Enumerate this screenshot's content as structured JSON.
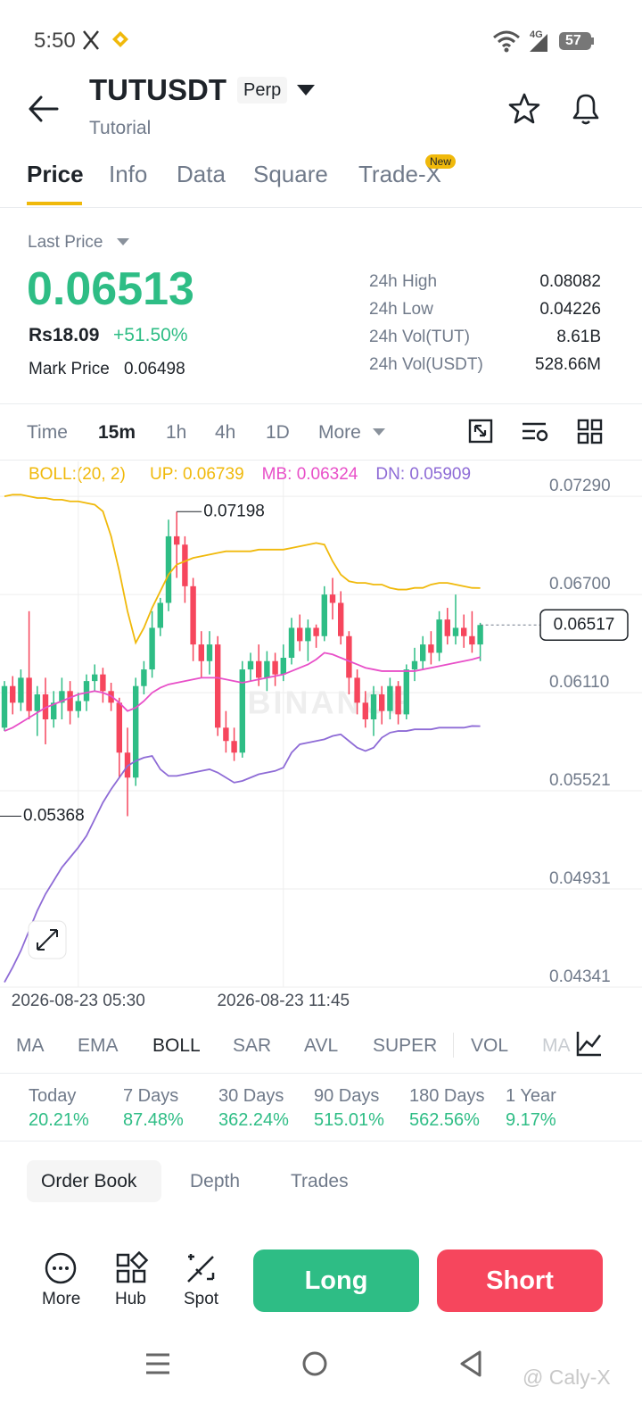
{
  "status_bar": {
    "time": "5:50",
    "battery": "57",
    "network": "4G"
  },
  "header": {
    "symbol": "TUTUSDT",
    "badge": "Perp",
    "subtitle": "Tutorial"
  },
  "tabs": [
    "Price",
    "Info",
    "Data",
    "Square",
    "Trade-X"
  ],
  "new_badge": "New",
  "ticker": {
    "last_price_label": "Last Price",
    "last_price": "0.06513",
    "local_price": "Rs18.09",
    "change": "+51.50%",
    "mark_price_label": "Mark Price",
    "mark_price": "0.06498",
    "stats": [
      {
        "label": "24h High",
        "value": "0.08082"
      },
      {
        "label": "24h Low",
        "value": "0.04226"
      },
      {
        "label": "24h Vol(TUT)",
        "value": "8.61B"
      },
      {
        "label": "24h Vol(USDT)",
        "value": "528.66M"
      }
    ]
  },
  "intervals": [
    "Time",
    "15m",
    "1h",
    "4h",
    "1D",
    "More"
  ],
  "chart_data": {
    "type": "candlestick",
    "indicator": "BOLL:(20, 2)",
    "watermark": "BINANCE",
    "categories": [
      null,
      null,
      null,
      null,
      null,
      null,
      null,
      null,
      null,
      "2026-08-23 05:30",
      null,
      null,
      null,
      null,
      null,
      null,
      null,
      null,
      null,
      null,
      null,
      null,
      null,
      null,
      null,
      null,
      null,
      null,
      null,
      null,
      null,
      null,
      null,
      null,
      "2026-08-23 11:45",
      null,
      null,
      null,
      null,
      null,
      null,
      null,
      null,
      null,
      null,
      null,
      null,
      null,
      null,
      null,
      null,
      null,
      null,
      null,
      null,
      null,
      null,
      null,
      null
    ],
    "open": [
      0.059,
      0.0615,
      0.0605,
      0.062,
      0.06,
      0.061,
      0.0595,
      0.0605,
      0.0612,
      0.06,
      0.0606,
      0.0618,
      0.0622,
      0.0612,
      0.0605,
      0.0575,
      0.056,
      0.0615,
      0.0625,
      0.065,
      0.0665,
      0.0705,
      0.07,
      0.0675,
      0.064,
      0.063,
      0.064,
      0.059,
      0.0582,
      0.0575,
      0.0625,
      0.063,
      0.062,
      0.063,
      0.0622,
      0.0632,
      0.065,
      0.0642,
      0.065,
      0.0645,
      0.067,
      0.0665,
      0.0645,
      0.062,
      0.0605,
      0.0595,
      0.061,
      0.06,
      0.0615,
      0.0598,
      0.0625,
      0.063,
      0.064,
      0.0635,
      0.0655,
      0.0645,
      0.065,
      0.0645,
      0.064
    ],
    "high": [
      0.0618,
      0.0621,
      0.0625,
      0.066,
      0.0615,
      0.062,
      0.0612,
      0.062,
      0.0618,
      0.0611,
      0.0622,
      0.0628,
      0.0626,
      0.0617,
      0.0608,
      0.059,
      0.062,
      0.063,
      0.066,
      0.0668,
      0.0715,
      0.07198,
      0.0705,
      0.068,
      0.0648,
      0.0648,
      0.0645,
      0.06,
      0.059,
      0.063,
      0.0635,
      0.064,
      0.0636,
      0.0635,
      0.064,
      0.0656,
      0.0658,
      0.0655,
      0.0652,
      0.0675,
      0.068,
      0.0672,
      0.0648,
      0.0625,
      0.0612,
      0.0615,
      0.0615,
      0.062,
      0.0618,
      0.0628,
      0.0638,
      0.0645,
      0.0648,
      0.066,
      0.0662,
      0.067,
      0.0658,
      0.066,
      0.0653
    ],
    "low": [
      0.0588,
      0.0598,
      0.06,
      0.0595,
      0.0585,
      0.058,
      0.059,
      0.0595,
      0.0592,
      0.0596,
      0.06,
      0.0612,
      0.0605,
      0.06,
      0.056,
      0.05368,
      0.0555,
      0.061,
      0.062,
      0.0645,
      0.066,
      0.068,
      0.0665,
      0.063,
      0.062,
      0.0622,
      0.0585,
      0.0575,
      0.057,
      0.0572,
      0.0618,
      0.0615,
      0.0612,
      0.0615,
      0.0618,
      0.0628,
      0.0636,
      0.063,
      0.0638,
      0.0642,
      0.0655,
      0.064,
      0.061,
      0.0598,
      0.059,
      0.0585,
      0.0592,
      0.0595,
      0.0592,
      0.0595,
      0.0618,
      0.0625,
      0.0628,
      0.063,
      0.064,
      0.064,
      0.0638,
      0.0635,
      0.063
    ],
    "close": [
      0.0615,
      0.0605,
      0.062,
      0.06,
      0.061,
      0.0595,
      0.0605,
      0.0612,
      0.06,
      0.0606,
      0.0618,
      0.0622,
      0.0612,
      0.0605,
      0.0575,
      0.056,
      0.0615,
      0.0625,
      0.065,
      0.0665,
      0.0705,
      0.07,
      0.0675,
      0.064,
      0.063,
      0.064,
      0.059,
      0.0582,
      0.0575,
      0.0625,
      0.063,
      0.062,
      0.063,
      0.0622,
      0.0632,
      0.065,
      0.0642,
      0.065,
      0.0645,
      0.067,
      0.0665,
      0.0645,
      0.062,
      0.0605,
      0.0595,
      0.061,
      0.06,
      0.0615,
      0.0598,
      0.0625,
      0.063,
      0.064,
      0.0635,
      0.0655,
      0.0645,
      0.065,
      0.0645,
      0.064,
      0.06517
    ],
    "up_color": "#2ebd85",
    "down_color": "#f6465d",
    "series": [
      {
        "name": "UP: 0.06739",
        "color": "#f0b90b",
        "values": [
          0.0729,
          0.073,
          0.073,
          0.0729,
          0.0728,
          0.0728,
          0.0727,
          0.0727,
          0.0726,
          0.0726,
          0.0725,
          0.0724,
          0.072,
          0.0705,
          0.0684,
          0.066,
          0.0641,
          0.065,
          0.0662,
          0.0672,
          0.0682,
          0.0688,
          0.069,
          0.0692,
          0.0693,
          0.0694,
          0.0695,
          0.0696,
          0.0696,
          0.0696,
          0.0696,
          0.0697,
          0.0697,
          0.0697,
          0.0697,
          0.0698,
          0.0699,
          0.07,
          0.0701,
          0.07,
          0.069,
          0.0682,
          0.0678,
          0.0677,
          0.0677,
          0.0676,
          0.0676,
          0.0674,
          0.0673,
          0.0673,
          0.0674,
          0.0674,
          0.0676,
          0.0677,
          0.0677,
          0.0676,
          0.0675,
          0.0674,
          0.06739
        ]
      },
      {
        "name": "MB: 0.06324",
        "color": "#e84fc8",
        "values": [
          0.0588,
          0.059,
          0.0593,
          0.0596,
          0.0599,
          0.0602,
          0.0604,
          0.0606,
          0.0608,
          0.061,
          0.0611,
          0.0612,
          0.0611,
          0.0609,
          0.0605,
          0.06,
          0.0602,
          0.0606,
          0.0611,
          0.0614,
          0.0616,
          0.0617,
          0.0618,
          0.0619,
          0.062,
          0.062,
          0.062,
          0.0619,
          0.0618,
          0.0617,
          0.0618,
          0.0619,
          0.062,
          0.0621,
          0.0622,
          0.0624,
          0.0626,
          0.0628,
          0.0631,
          0.0635,
          0.0634,
          0.0632,
          0.063,
          0.0628,
          0.0626,
          0.0625,
          0.0624,
          0.0624,
          0.0624,
          0.0624,
          0.0624,
          0.0625,
          0.0626,
          0.0627,
          0.0628,
          0.0629,
          0.063,
          0.0631,
          0.06324
        ]
      },
      {
        "name": "DN: 0.05909",
        "color": "#8e6bd6",
        "values": [
          0.0437,
          0.0446,
          0.0456,
          0.0468,
          0.048,
          0.049,
          0.0498,
          0.0506,
          0.0512,
          0.0518,
          0.0525,
          0.0535,
          0.0545,
          0.0553,
          0.056,
          0.0567,
          0.057,
          0.0572,
          0.0573,
          0.0565,
          0.0561,
          0.0561,
          0.0562,
          0.0563,
          0.0564,
          0.0565,
          0.0563,
          0.056,
          0.0557,
          0.0558,
          0.056,
          0.0562,
          0.0563,
          0.0564,
          0.0566,
          0.0575,
          0.058,
          0.0581,
          0.0582,
          0.0583,
          0.0585,
          0.0586,
          0.0582,
          0.0578,
          0.0576,
          0.0578,
          0.0584,
          0.0587,
          0.0588,
          0.0588,
          0.0589,
          0.0589,
          0.0589,
          0.059,
          0.059,
          0.059,
          0.059,
          0.0591,
          0.05909
        ]
      }
    ],
    "ylim": [
      0.04341,
      0.075
    ],
    "yticks": [
      {
        "value": 0.0729,
        "label": "0.07290"
      },
      {
        "value": 0.067,
        "label": "0.06700"
      },
      {
        "value": 0.0611,
        "label": "0.06110"
      },
      0.05521,
      0.04931,
      0.04341
    ],
    "grid": true
  },
  "indicators": [
    "MA",
    "EMA",
    "BOLL",
    "SAR",
    "AVL",
    "SUPER",
    "VOL",
    "MA"
  ],
  "performance": [
    {
      "label": "Today",
      "value": "20.21%"
    },
    {
      "label": "7 Days",
      "value": "87.48%"
    },
    {
      "label": "30 Days",
      "value": "362.24%"
    },
    {
      "label": "90 Days",
      "value": "515.01%"
    },
    {
      "label": "180 Days",
      "value": "562.56%"
    },
    {
      "label": "1 Year",
      "value": "9.17%"
    }
  ],
  "book_tabs": [
    "Order Book",
    "Depth",
    "Trades"
  ],
  "actions": [
    "More",
    "Hub",
    "Spot"
  ],
  "buttons": [
    "Long",
    "Short"
  ],
  "watermark": "@ Caly-X"
}
